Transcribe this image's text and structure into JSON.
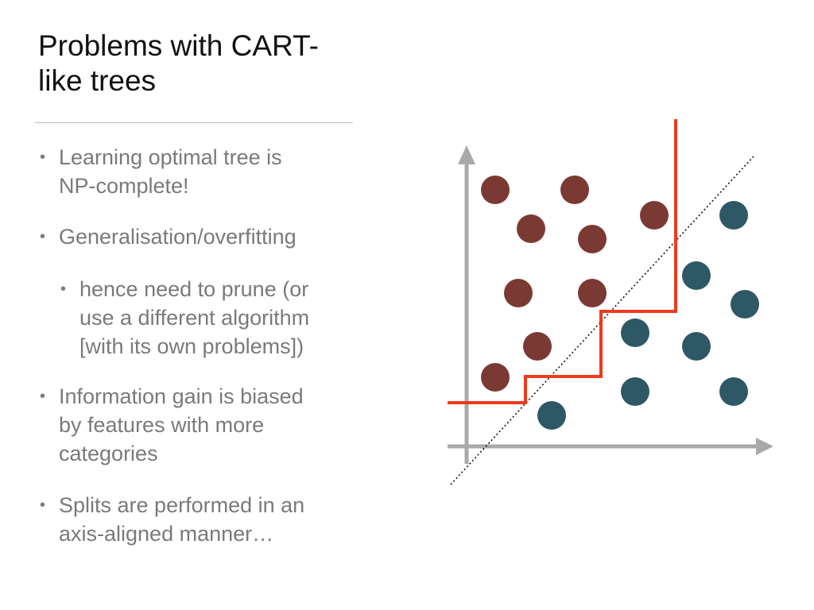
{
  "slide": {
    "title_lines": [
      "Problems with CART-",
      "like trees"
    ],
    "bullets": [
      {
        "level": 1,
        "lines": [
          "Learning optimal tree is",
          "NP-complete!"
        ]
      },
      {
        "level": 1,
        "lines": [
          "Generalisation/overfitting"
        ]
      },
      {
        "level": 2,
        "lines": [
          "hence need to prune (or",
          "use a different algorithm",
          "[with its own problems])"
        ]
      },
      {
        "level": 1,
        "lines": [
          "Information gain is biased",
          "by features with more",
          "categories"
        ]
      },
      {
        "level": 1,
        "lines": [
          "Splits are performed in an",
          "axis-aligned manner…"
        ]
      }
    ]
  },
  "diagram": {
    "colors": {
      "class_a": "#7a3a33",
      "class_b": "#2f5866",
      "axis": "#a9a9a9",
      "tree_boundary": "#ef3a1d",
      "diagonal_boundary": "#111111"
    }
  }
}
